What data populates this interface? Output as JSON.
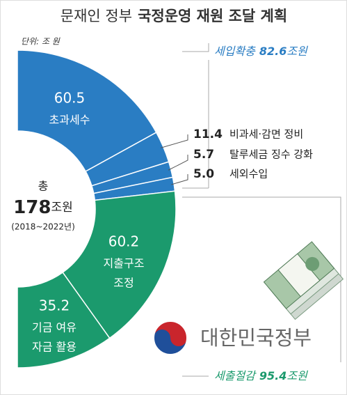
{
  "chart_data": {
    "type": "pie",
    "title_light": "문재인 정부",
    "title_bold": "국정운영 재원 조달 계획",
    "unit": "단위: 조 원",
    "categories": [
      [
        "초과세수"
      ],
      [
        "비과세·감면 정비"
      ],
      [
        "탈루세금 징수 강화"
      ],
      [
        "세외수입"
      ],
      [
        "지출구조",
        "조정"
      ],
      [
        "기금 여유",
        "자금 활용"
      ]
    ],
    "values": [
      60.5,
      11.4,
      5.7,
      5.0,
      60.2,
      35.2
    ],
    "value_labels": [
      "60.5",
      "11.4",
      "5.7",
      "5.0",
      "60.2",
      "35.2"
    ],
    "colors": [
      "#2a7dc3",
      "#2a7dc3",
      "#2a7dc3",
      "#2a7dc3",
      "#1b9a6d",
      "#1b9a6d"
    ],
    "groups": [
      {
        "name": "세입확충",
        "value": 82.6,
        "color": "#2a7dc3"
      },
      {
        "name": "세출절감",
        "value": 95.4,
        "color": "#1b9a6d"
      }
    ],
    "unit_suffix": "조원",
    "center_prefix": "총",
    "center_total": 178,
    "center_period": "(2018~2022년)",
    "logo_text": "대한민국정부"
  }
}
